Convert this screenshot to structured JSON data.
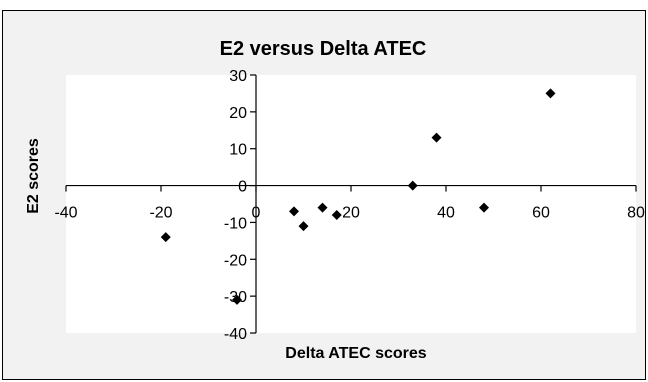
{
  "chart_data": {
    "type": "scatter",
    "title": "E2 versus Delta ATEC",
    "xlabel": "Delta ATEC scores",
    "ylabel": "E2 scores",
    "xlim": [
      -40,
      80
    ],
    "ylim": [
      -40,
      30
    ],
    "xticks": [
      -40,
      -20,
      0,
      20,
      40,
      60,
      80
    ],
    "yticks": [
      -40,
      -30,
      -20,
      -10,
      0,
      10,
      20,
      30
    ],
    "xtick_labels": [
      "-40",
      "-20",
      "0",
      "20",
      "40",
      "60",
      "80"
    ],
    "ytick_labels": [
      "-40",
      "-30",
      "-20",
      "-10",
      "0",
      "10",
      "20",
      "30"
    ],
    "grid": false,
    "legend": "none",
    "marker": "diamond",
    "colors": {
      "marker": "#000000",
      "plot_area": "#ffffff",
      "chart_area": "#f2f2f2",
      "axis": "#000000"
    },
    "points": [
      {
        "x": -19,
        "y": -14
      },
      {
        "x": -4,
        "y": -31
      },
      {
        "x": 8,
        "y": -7
      },
      {
        "x": 10,
        "y": -11
      },
      {
        "x": 14,
        "y": -6
      },
      {
        "x": 17,
        "y": -8
      },
      {
        "x": 33,
        "y": 0
      },
      {
        "x": 38,
        "y": 13
      },
      {
        "x": 48,
        "y": -6
      },
      {
        "x": 62,
        "y": 25
      }
    ]
  }
}
